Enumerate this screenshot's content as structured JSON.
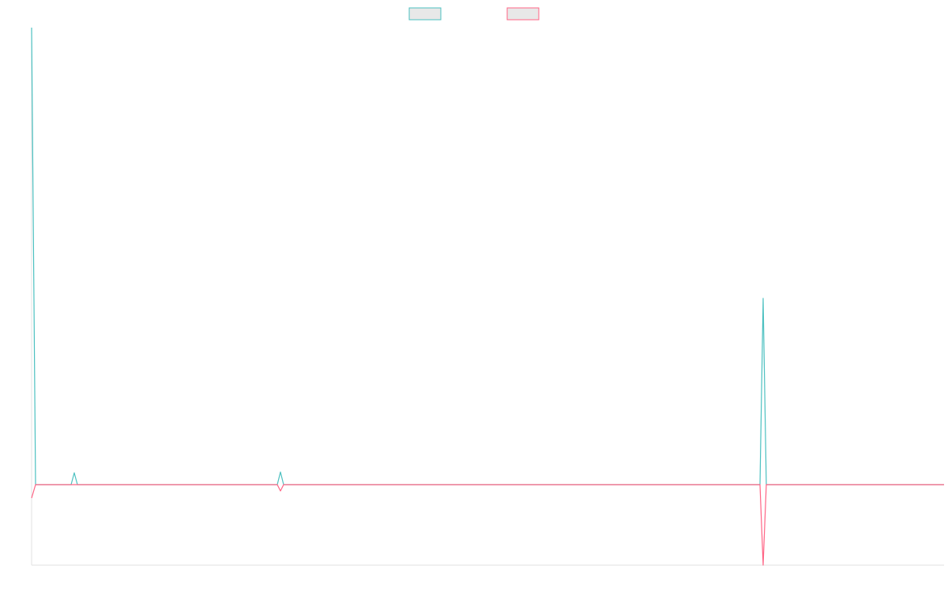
{
  "chart_data": {
    "type": "line",
    "x": [
      0,
      5,
      50,
      54,
      58,
      311,
      315,
      319,
      922,
      926,
      930,
      1155
    ],
    "xlim": [
      0,
      1155
    ],
    "ylim": [
      -102,
      579
    ],
    "legend": "top",
    "series": [
      {
        "color": "#4bc0c0",
        "values": [
          579,
          0,
          0,
          15,
          0,
          0,
          16,
          0,
          0,
          236,
          0,
          0
        ]
      },
      {
        "color": "#ff6384",
        "values": [
          -17,
          0,
          0,
          0,
          0,
          0,
          -8,
          0,
          0,
          -102,
          0,
          0
        ]
      }
    ]
  }
}
